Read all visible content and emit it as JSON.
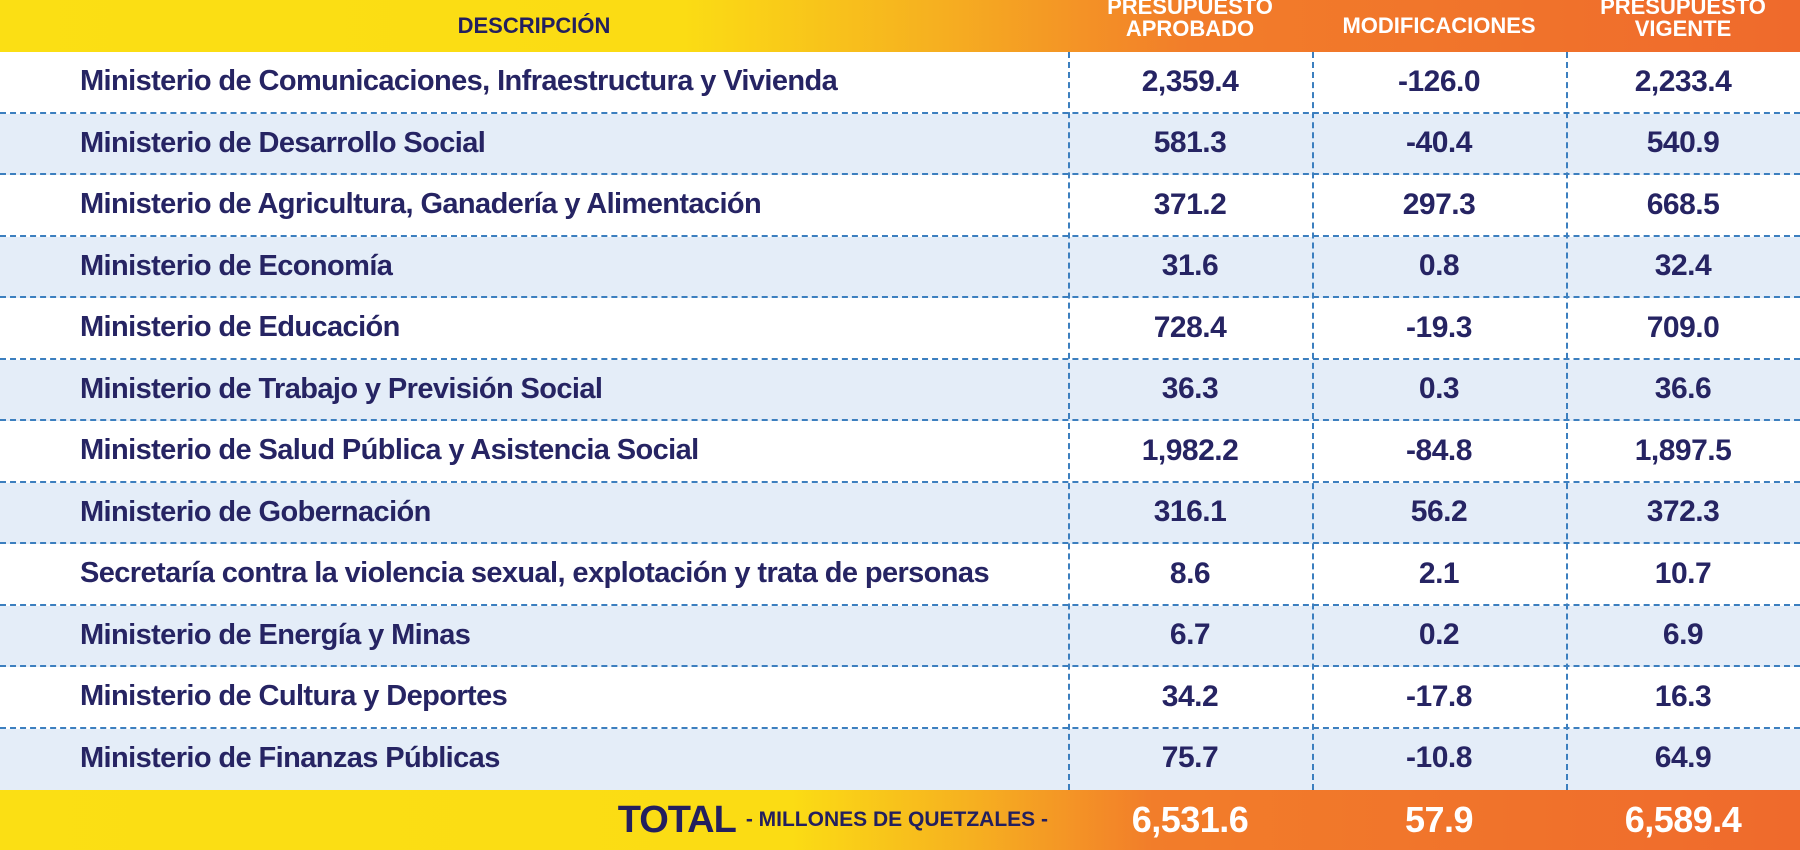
{
  "header": {
    "descripcion": "DESCRIPCIÓN",
    "aprobado_line1": "PRESUPUESTO",
    "aprobado_line2": "APROBADO",
    "modificaciones": "MODIFICACIONES",
    "vigente_line1": "PRESUPUESTO",
    "vigente_line2": "VIGENTE"
  },
  "rows": [
    {
      "descripcion": "Ministerio de Comunicaciones, Infraestructura y Vivienda",
      "aprobado": "2,359.4",
      "modificaciones": "-126.0",
      "vigente": "2,233.4"
    },
    {
      "descripcion": "Ministerio de Desarrollo Social",
      "aprobado": "581.3",
      "modificaciones": "-40.4",
      "vigente": "540.9"
    },
    {
      "descripcion": "Ministerio de Agricultura, Ganadería y Alimentación",
      "aprobado": "371.2",
      "modificaciones": "297.3",
      "vigente": "668.5"
    },
    {
      "descripcion": "Ministerio de Economía",
      "aprobado": "31.6",
      "modificaciones": "0.8",
      "vigente": "32.4"
    },
    {
      "descripcion": "Ministerio de Educación",
      "aprobado": "728.4",
      "modificaciones": "-19.3",
      "vigente": "709.0"
    },
    {
      "descripcion": "Ministerio de Trabajo y Previsión Social",
      "aprobado": "36.3",
      "modificaciones": "0.3",
      "vigente": "36.6"
    },
    {
      "descripcion": "Ministerio de Salud Pública y Asistencia Social",
      "aprobado": "1,982.2",
      "modificaciones": "-84.8",
      "vigente": "1,897.5"
    },
    {
      "descripcion": "Ministerio de Gobernación",
      "aprobado": "316.1",
      "modificaciones": "56.2",
      "vigente": "372.3"
    },
    {
      "descripcion": "Secretaría contra la violencia sexual, explotación y trata de personas",
      "aprobado": "8.6",
      "modificaciones": "2.1",
      "vigente": "10.7"
    },
    {
      "descripcion": "Ministerio de Energía y Minas",
      "aprobado": "6.7",
      "modificaciones": "0.2",
      "vigente": "6.9"
    },
    {
      "descripcion": "Ministerio de Cultura y Deportes",
      "aprobado": "34.2",
      "modificaciones": "-17.8",
      "vigente": "16.3"
    },
    {
      "descripcion": "Ministerio de Finanzas Públicas",
      "aprobado": "75.7",
      "modificaciones": "-10.8",
      "vigente": "64.9"
    }
  ],
  "total": {
    "label": "TOTAL",
    "unit_label": "- MILLONES DE QUETZALES -",
    "aprobado": "6,531.6",
    "modificaciones": "57.9",
    "vigente": "6,589.4"
  },
  "colors": {
    "text_navy": "#262463",
    "row_alt": "#e4edf8",
    "divider_blue": "#3c7fbf",
    "header_yellow": "#fbdf14",
    "header_orange": "#ef6a2c"
  }
}
